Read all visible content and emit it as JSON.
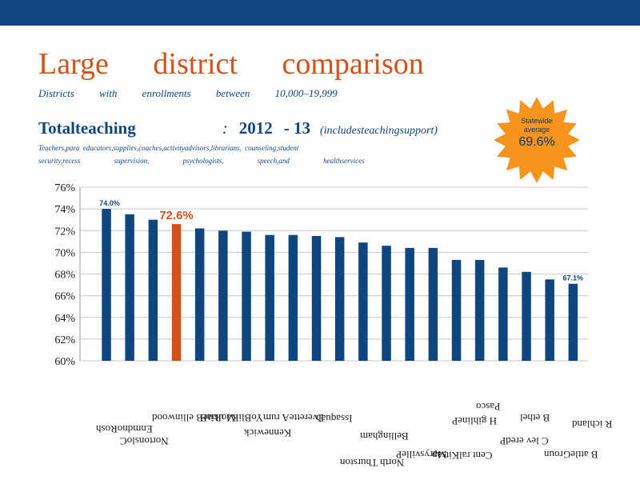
{
  "slide": {
    "title": "Large district comparison",
    "subtitle": "Districts with enrollments between 10,000–19,999",
    "heading_main": "Totalteaching",
    "heading_colon": ":",
    "heading_year": "2012",
    "heading_year2": "- 13",
    "heading_note": "(includesteachingsupport)",
    "desc_line1": "Teachers,para                   educators,supplies,coaches,activityadvisors,librarians,                                                   counseling,student",
    "desc_line2": "security,recess supervision, psychologists, speech,and healthservices"
  },
  "callout": {
    "line1": "Statewide",
    "line2": "average",
    "value": "69.6%",
    "fill_color": "#f7941d"
  },
  "colors": {
    "bar": "#0f4680",
    "highlight": "#d2521a",
    "header": "#0f4680"
  },
  "chart_data": {
    "type": "bar",
    "values": [
      74.0,
      73.5,
      73.0,
      72.6,
      72.2,
      72.0,
      71.9,
      71.6,
      71.6,
      71.5,
      71.4,
      70.9,
      70.6,
      70.4,
      70.4,
      69.3,
      69.3,
      68.6,
      68.2,
      67.5,
      67.1
    ],
    "highlight_index": 3,
    "ylim": [
      60,
      76
    ],
    "yticks": [
      "60%",
      "62%",
      "64%",
      "66%",
      "68%",
      "70%",
      "72%",
      "74%",
      "76%"
    ],
    "data_labels": [
      {
        "index": 0,
        "text": "74.0%"
      },
      {
        "index": 3,
        "text": "72.6%"
      },
      {
        "index": 20,
        "text": "67.1%"
      }
    ],
    "grid": true,
    "legend": "none"
  },
  "xlabels_scrambled": [
    "EnmdnoRosh",
    "NortonsloC",
    "M ukiteB ellinwood",
    "EveretteA rumYoBliKaoRiaB",
    "Kennewick",
    "Issaquah",
    "Bellingham",
    "MarysvilleP",
    "H gihlineP",
    "Cent ralKitsap",
    "North Thurston",
    "C lev eredP",
    "B ethel",
    "Pasco",
    "R ichland",
    "B attleGroun"
  ]
}
